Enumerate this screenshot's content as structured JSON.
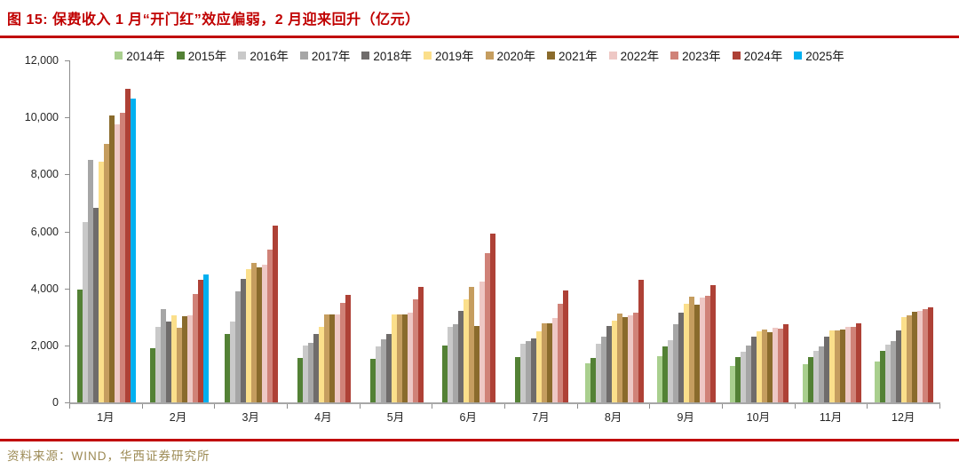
{
  "title": "图 15: 保费收入 1 月“开门红”效应偏弱，2 月迎来回升（亿元）",
  "footer": {
    "source_text": "资料来源：WIND，华西证券研究所"
  },
  "colors": {
    "accent_red": "#c00000",
    "source_text_color": "#9c8a54",
    "axis": "#8c8c8c",
    "tick_label": "#262626"
  },
  "chart_data": {
    "type": "bar",
    "title": "保费收入（亿元）",
    "xlabel": "",
    "ylabel": "",
    "ylim": [
      0,
      12000
    ],
    "grid": false,
    "legend_position": "top",
    "categories": [
      "1月",
      "2月",
      "3月",
      "4月",
      "5月",
      "6月",
      "7月",
      "8月",
      "9月",
      "10月",
      "11月",
      "12月"
    ],
    "y_ticks": [
      "0",
      "2,000",
      "4,000",
      "6,000",
      "8,000",
      "10,000",
      "12,000"
    ],
    "y_tick_values": [
      0,
      2000,
      4000,
      6000,
      8000,
      10000,
      12000
    ],
    "series": [
      {
        "name": "2014年",
        "color": "#a9cf8e",
        "values": [
          null,
          null,
          null,
          null,
          null,
          null,
          null,
          1360,
          1630,
          1270,
          1340,
          1440
        ]
      },
      {
        "name": "2015年",
        "color": "#538135",
        "values": [
          3950,
          1910,
          2400,
          1550,
          1520,
          2000,
          1600,
          1570,
          1960,
          1580,
          1600,
          1810
        ]
      },
      {
        "name": "2016年",
        "color": "#c9c9c9",
        "values": [
          6320,
          2640,
          2850,
          2000,
          1960,
          2640,
          2070,
          2050,
          2190,
          1780,
          1810,
          2020
        ]
      },
      {
        "name": "2017年",
        "color": "#a6a6a6",
        "values": [
          8520,
          3260,
          3890,
          2100,
          2200,
          2740,
          2150,
          2300,
          2740,
          1980,
          1960,
          2140
        ]
      },
      {
        "name": "2018年",
        "color": "#6f6c6b",
        "values": [
          6820,
          2850,
          4330,
          2400,
          2410,
          3210,
          2250,
          2690,
          3160,
          2300,
          2300,
          2530
        ]
      },
      {
        "name": "2019年",
        "color": "#fbdf8b",
        "values": [
          8450,
          3050,
          4680,
          2650,
          3080,
          3620,
          2480,
          2880,
          3470,
          2480,
          2530,
          2980
        ]
      },
      {
        "name": "2020年",
        "color": "#c59d5f",
        "values": [
          9080,
          2610,
          4890,
          3100,
          3100,
          4060,
          2770,
          3120,
          3710,
          2550,
          2530,
          3050
        ]
      },
      {
        "name": "2021年",
        "color": "#8a6b2c",
        "values": [
          10080,
          3020,
          4740,
          3100,
          3100,
          2690,
          2770,
          2980,
          3440,
          2460,
          2550,
          3190
        ]
      },
      {
        "name": "2022年",
        "color": "#eec8c5",
        "values": [
          9770,
          3050,
          4820,
          3100,
          3150,
          4230,
          2950,
          3070,
          3680,
          2620,
          2640,
          3210
        ]
      },
      {
        "name": "2023年",
        "color": "#d08278",
        "values": [
          10160,
          3810,
          5370,
          3500,
          3600,
          5250,
          3470,
          3160,
          3750,
          2590,
          2660,
          3280
        ]
      },
      {
        "name": "2024年",
        "color": "#ae4136",
        "values": [
          11000,
          4300,
          6190,
          3760,
          4060,
          5930,
          3920,
          4300,
          4110,
          2750,
          2780,
          3340
        ]
      },
      {
        "name": "2025年",
        "color": "#00b0f0",
        "values": [
          10650,
          4480,
          null,
          null,
          null,
          null,
          null,
          null,
          null,
          null,
          null,
          null
        ]
      }
    ]
  }
}
